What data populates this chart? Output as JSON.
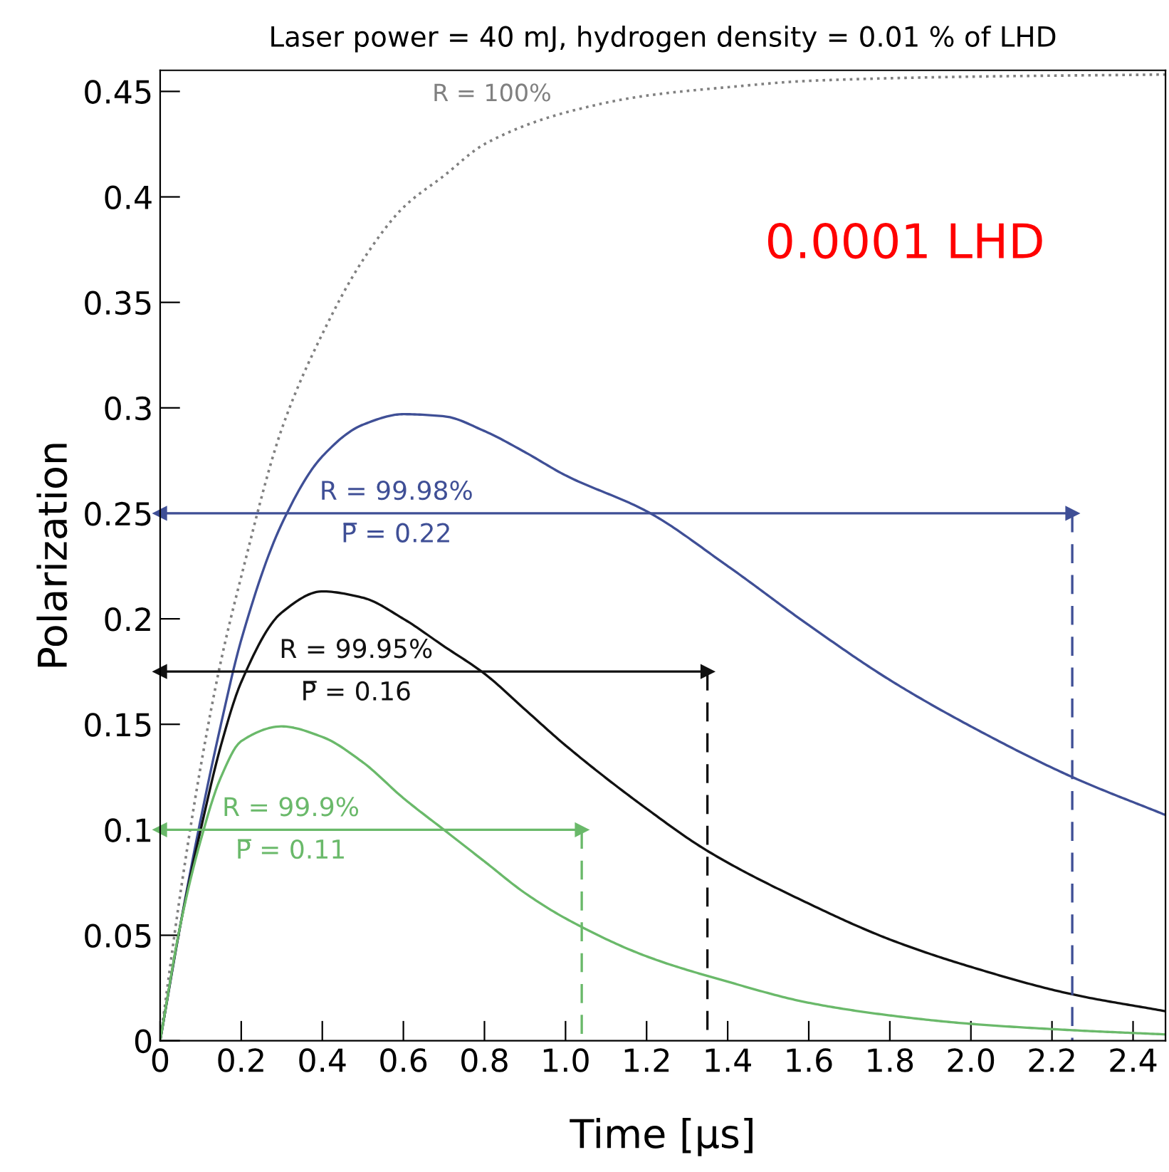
{
  "chart_data": {
    "type": "line",
    "title": "Laser power = 40 mJ, hydrogen density = 0.01 % of LHD",
    "xlabel": "Time [μs]",
    "ylabel": "Polarization",
    "xlim": [
      0,
      2.48
    ],
    "ylim": [
      0,
      0.46
    ],
    "xticks": [
      0,
      0.2,
      0.4,
      0.6,
      0.8,
      {
        "value": 1.0,
        "label": "1.0"
      },
      1.2,
      1.4,
      1.6,
      1.8,
      {
        "value": 2.0,
        "label": "2.0"
      },
      2.2,
      2.4
    ],
    "yticks": [
      0,
      0.05,
      0.1,
      0.15,
      0.2,
      0.25,
      0.3,
      0.35,
      0.4,
      0.45
    ],
    "grid": false,
    "legend": false,
    "series": [
      {
        "name": "R = 100%",
        "color": "#808080",
        "line_style": "dotted",
        "x": [
          0,
          0.05,
          0.1,
          0.15,
          0.2,
          0.3,
          0.4,
          0.5,
          0.6,
          0.7,
          0.8,
          1.0,
          1.2,
          1.4,
          1.6,
          2.0,
          2.48
        ],
        "values": [
          0,
          0.07,
          0.13,
          0.18,
          0.22,
          0.29,
          0.335,
          0.37,
          0.395,
          0.41,
          0.425,
          0.44,
          0.448,
          0.452,
          0.455,
          0.457,
          0.458
        ]
      },
      {
        "color": "#3f4f96",
        "line_style": "solid",
        "x": [
          0,
          0.05,
          0.1,
          0.15,
          0.2,
          0.3,
          0.4,
          0.5,
          0.6,
          0.7,
          0.8,
          0.9,
          1.0,
          1.2,
          1.4,
          1.6,
          1.8,
          2.0,
          2.25,
          2.48
        ],
        "values": [
          0,
          0.055,
          0.105,
          0.15,
          0.19,
          0.245,
          0.277,
          0.292,
          0.297,
          0.296,
          0.289,
          0.279,
          0.268,
          0.251,
          0.225,
          0.197,
          0.171,
          0.149,
          0.125,
          0.107
        ]
      },
      {
        "color": "#111111",
        "line_style": "solid",
        "x": [
          0,
          0.05,
          0.1,
          0.15,
          0.2,
          0.3,
          0.4,
          0.5,
          0.6,
          0.7,
          0.8,
          0.9,
          1.0,
          1.2,
          1.35,
          1.6,
          1.8,
          2.0,
          2.25,
          2.48
        ],
        "values": [
          0,
          0.055,
          0.1,
          0.14,
          0.17,
          0.203,
          0.213,
          0.21,
          0.2,
          0.187,
          0.174,
          0.157,
          0.14,
          0.11,
          0.09,
          0.065,
          0.048,
          0.035,
          0.022,
          0.014
        ]
      },
      {
        "color": "#6ab96a",
        "line_style": "solid",
        "x": [
          0,
          0.05,
          0.1,
          0.15,
          0.2,
          0.3,
          0.4,
          0.5,
          0.6,
          0.7,
          0.8,
          0.9,
          1.0,
          1.2,
          1.4,
          1.6,
          1.8,
          2.0,
          2.25,
          2.48
        ],
        "values": [
          0,
          0.055,
          0.095,
          0.125,
          0.142,
          0.149,
          0.144,
          0.132,
          0.115,
          0.1,
          0.085,
          0.07,
          0.058,
          0.04,
          0.028,
          0.018,
          0.012,
          0.008,
          0.005,
          0.003
        ]
      },
      {
        "color": "#3f4f96",
        "line_style": "dashed",
        "x": [
          2.25,
          2.25
        ],
        "values": [
          0.25,
          0
        ]
      },
      {
        "color": "#111111",
        "line_style": "dashed",
        "x": [
          1.35,
          1.35
        ],
        "values": [
          0.175,
          0
        ]
      },
      {
        "color": "#6ab96a",
        "line_style": "dashed",
        "x": [
          1.04,
          1.04
        ],
        "values": [
          0.1,
          0
        ]
      },
      {
        "color": "#3f4f96",
        "line_style": "solid",
        "marker": "triangle",
        "x": [
          0,
          2.25
        ],
        "values": [
          0.25,
          0.25
        ]
      },
      {
        "color": "#111111",
        "line_style": "solid",
        "marker": "triangle",
        "x": [
          0,
          1.35
        ],
        "values": [
          0.175,
          0.175
        ]
      },
      {
        "color": "#6ab96a",
        "line_style": "solid",
        "marker": "triangle",
        "x": [
          0,
          1.04
        ],
        "values": [
          0.1,
          0.1
        ]
      }
    ],
    "annotations": [
      "R = 99.98%\nP̅ = 0.22",
      "R = 99.95%\nP̅ = 0.16",
      "R = 99.9%\nP̅ = 0.11",
      "0.0001 LHD"
    ]
  }
}
